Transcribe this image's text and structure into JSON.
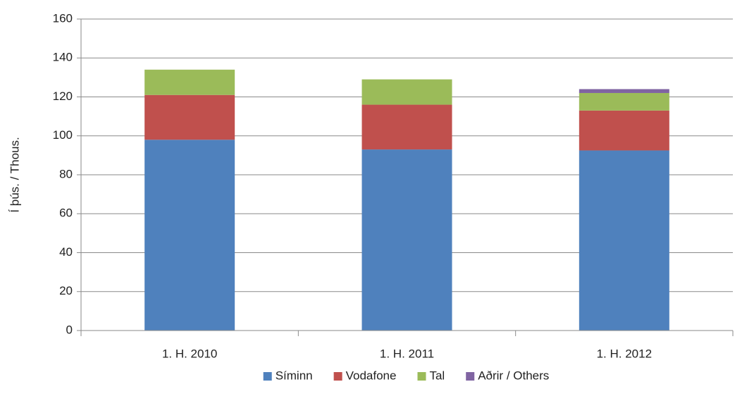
{
  "chart_data": {
    "type": "bar",
    "stacked": true,
    "y_label": "Í þús. / Thous.",
    "categories": [
      "1. H. 2010",
      "1. H. 2011",
      "1. H. 2012"
    ],
    "series": [
      {
        "name": "Síminn",
        "color": "#4f81bd",
        "values": [
          98,
          93,
          92.5
        ]
      },
      {
        "name": "Vodafone",
        "color": "#c0504d",
        "values": [
          23,
          23,
          20.5
        ]
      },
      {
        "name": "Tal",
        "color": "#9bbb59",
        "values": [
          13,
          13,
          9
        ]
      },
      {
        "name": "Aðrir / Others",
        "color": "#8064a2",
        "values": [
          0,
          0,
          2
        ]
      }
    ],
    "ylim": [
      0,
      160
    ],
    "yticks": [
      0,
      20,
      40,
      60,
      80,
      100,
      120,
      140,
      160
    ],
    "grid": true,
    "legend": "bottom"
  }
}
